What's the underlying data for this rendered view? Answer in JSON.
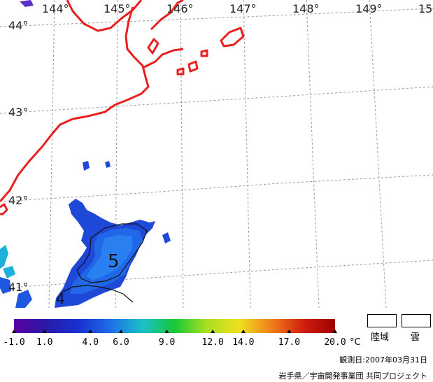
{
  "map": {
    "longitude_labels": [
      "144°",
      "145°",
      "146°",
      "147°",
      "148°",
      "149°",
      "15"
    ],
    "latitude_labels": [
      "44°",
      "43°",
      "42°",
      "41°"
    ],
    "contour_labels": [
      "5",
      "4"
    ],
    "colors": {
      "coastline": "#e82020",
      "graticule": "#9a9a9a",
      "contour": "#111111"
    }
  },
  "colorbar": {
    "ticks": [
      "-1.0",
      "1.0",
      "4.0",
      "6.0",
      "9.0",
      "12.0",
      "14.0",
      "17.0",
      "20.0"
    ],
    "unit": "°C",
    "colors": [
      "#5a00a0",
      "#2a1aa8",
      "#1830d0",
      "#1e6ee8",
      "#19c0c8",
      "#18c838",
      "#a8e020",
      "#f0e020",
      "#f08018",
      "#d02010",
      "#a00000"
    ]
  },
  "legend": {
    "land_label": "陸域",
    "cloud_label": "雲"
  },
  "footer": {
    "observation_date": "観測日:2007年03月31日",
    "credit": "岩手県／宇宙開発事業団 共同プロジェクト"
  }
}
